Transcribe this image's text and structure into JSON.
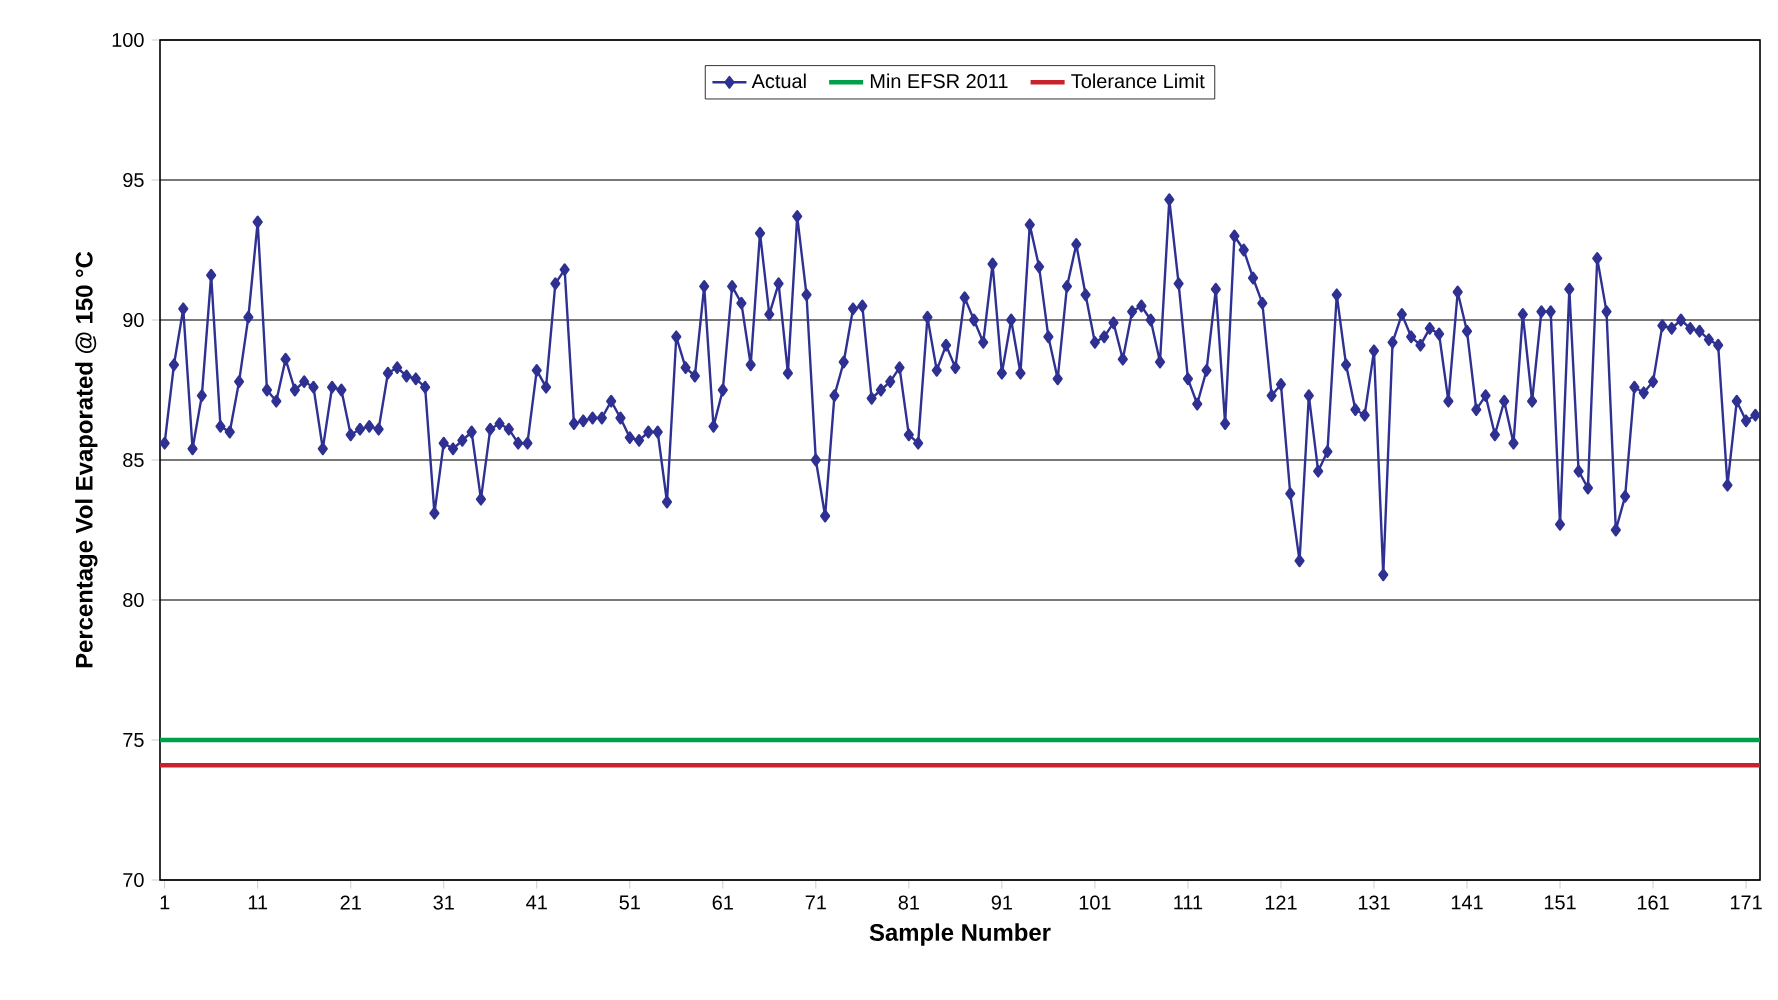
{
  "chart_data": {
    "type": "line",
    "xlabel": "Sample Number",
    "ylabel": "Percentage Vol Evaporated @ 150 °C",
    "x": [
      1,
      2,
      3,
      4,
      5,
      6,
      7,
      8,
      9,
      10,
      11,
      12,
      13,
      14,
      15,
      16,
      17,
      18,
      19,
      20,
      21,
      22,
      23,
      24,
      25,
      26,
      27,
      28,
      29,
      30,
      31,
      32,
      33,
      34,
      35,
      36,
      37,
      38,
      39,
      40,
      41,
      42,
      43,
      44,
      45,
      46,
      47,
      48,
      49,
      50,
      51,
      52,
      53,
      54,
      55,
      56,
      57,
      58,
      59,
      60,
      61,
      62,
      63,
      64,
      65,
      66,
      67,
      68,
      69,
      70,
      71,
      72,
      73,
      74,
      75,
      76,
      77,
      78,
      79,
      80,
      81,
      82,
      83,
      84,
      85,
      86,
      87,
      88,
      89,
      90,
      91,
      92,
      93,
      94,
      95,
      96,
      97,
      98,
      99,
      100,
      101,
      102,
      103,
      104,
      105,
      106,
      107,
      108,
      109,
      110,
      111,
      112,
      113,
      114,
      115,
      116,
      117,
      118,
      119,
      120,
      121,
      122,
      123,
      124,
      125,
      126,
      127,
      128,
      129,
      130,
      131,
      132,
      133,
      134,
      135,
      136,
      137,
      138,
      139,
      140,
      141,
      142,
      143,
      144,
      145,
      146,
      147,
      148,
      149,
      150,
      151,
      152,
      153,
      154,
      155,
      156,
      157,
      158,
      159,
      160,
      161,
      162,
      163,
      164,
      165,
      166,
      167,
      168,
      169,
      170,
      171,
      172
    ],
    "series": [
      {
        "name": "Actual",
        "color": "#2e3192",
        "marker": "diamond",
        "values": [
          85.6,
          88.4,
          90.4,
          85.4,
          87.3,
          91.6,
          86.2,
          86.0,
          87.8,
          90.1,
          93.5,
          87.5,
          87.1,
          88.6,
          87.5,
          87.8,
          87.6,
          85.4,
          87.6,
          87.5,
          85.9,
          86.1,
          86.2,
          86.1,
          88.1,
          88.3,
          88.0,
          87.9,
          87.6,
          83.1,
          85.6,
          85.4,
          85.7,
          86.0,
          83.6,
          86.1,
          86.3,
          86.1,
          85.6,
          85.6,
          88.2,
          87.6,
          91.3,
          91.8,
          86.3,
          86.4,
          86.5,
          86.5,
          87.1,
          86.5,
          85.8,
          85.7,
          86.0,
          86.0,
          83.5,
          89.4,
          88.3,
          88.0,
          91.2,
          86.2,
          87.5,
          91.2,
          90.6,
          88.4,
          93.1,
          90.2,
          91.3,
          88.1,
          93.7,
          90.9,
          85.0,
          83.0,
          87.3,
          88.5,
          90.4,
          90.5,
          87.2,
          87.5,
          87.8,
          88.3,
          85.9,
          85.6,
          90.1,
          88.2,
          89.1,
          88.3,
          90.8,
          90.0,
          89.2,
          92.0,
          88.1,
          90.0,
          88.1,
          93.4,
          91.9,
          89.4,
          87.9,
          91.2,
          92.7,
          90.9,
          89.2,
          89.4,
          89.9,
          88.6,
          90.3,
          90.5,
          90.0,
          88.5,
          94.3,
          91.3,
          87.9,
          87.0,
          88.2,
          91.1,
          86.3,
          93.0,
          92.5,
          91.5,
          90.6,
          87.3,
          87.7,
          83.8,
          81.4,
          87.3,
          84.6,
          85.3,
          90.9,
          88.4,
          86.8,
          86.6,
          88.9,
          80.9,
          89.2,
          90.2,
          89.4,
          89.1,
          89.7,
          89.5,
          87.1,
          91.0,
          89.6,
          86.8,
          87.3,
          85.9,
          87.1,
          85.6,
          90.2,
          87.1,
          90.3,
          90.3,
          82.7,
          91.1,
          84.6,
          84.0,
          92.2,
          90.3,
          82.5,
          83.7,
          87.6,
          87.4,
          87.8,
          89.8,
          89.7,
          90.0,
          89.7,
          89.6,
          89.3,
          89.1,
          84.1,
          87.1,
          86.4,
          86.6
        ]
      }
    ],
    "ref_lines": [
      {
        "axis": "y",
        "value": 75,
        "label": "Min EFSR 2011",
        "color": "#00a04a"
      },
      {
        "axis": "y",
        "value": 74.1,
        "label": "Tolerance Limit",
        "color": "#c8232c"
      }
    ],
    "xlim": [
      0.5,
      172.5
    ],
    "xticks": [
      1,
      11,
      21,
      31,
      41,
      51,
      61,
      71,
      81,
      91,
      101,
      111,
      121,
      131,
      141,
      151,
      161,
      171
    ],
    "ylim": [
      70,
      100
    ],
    "yticks": [
      70,
      75,
      80,
      85,
      90,
      95,
      100
    ],
    "grid": "y",
    "legend": "top"
  }
}
